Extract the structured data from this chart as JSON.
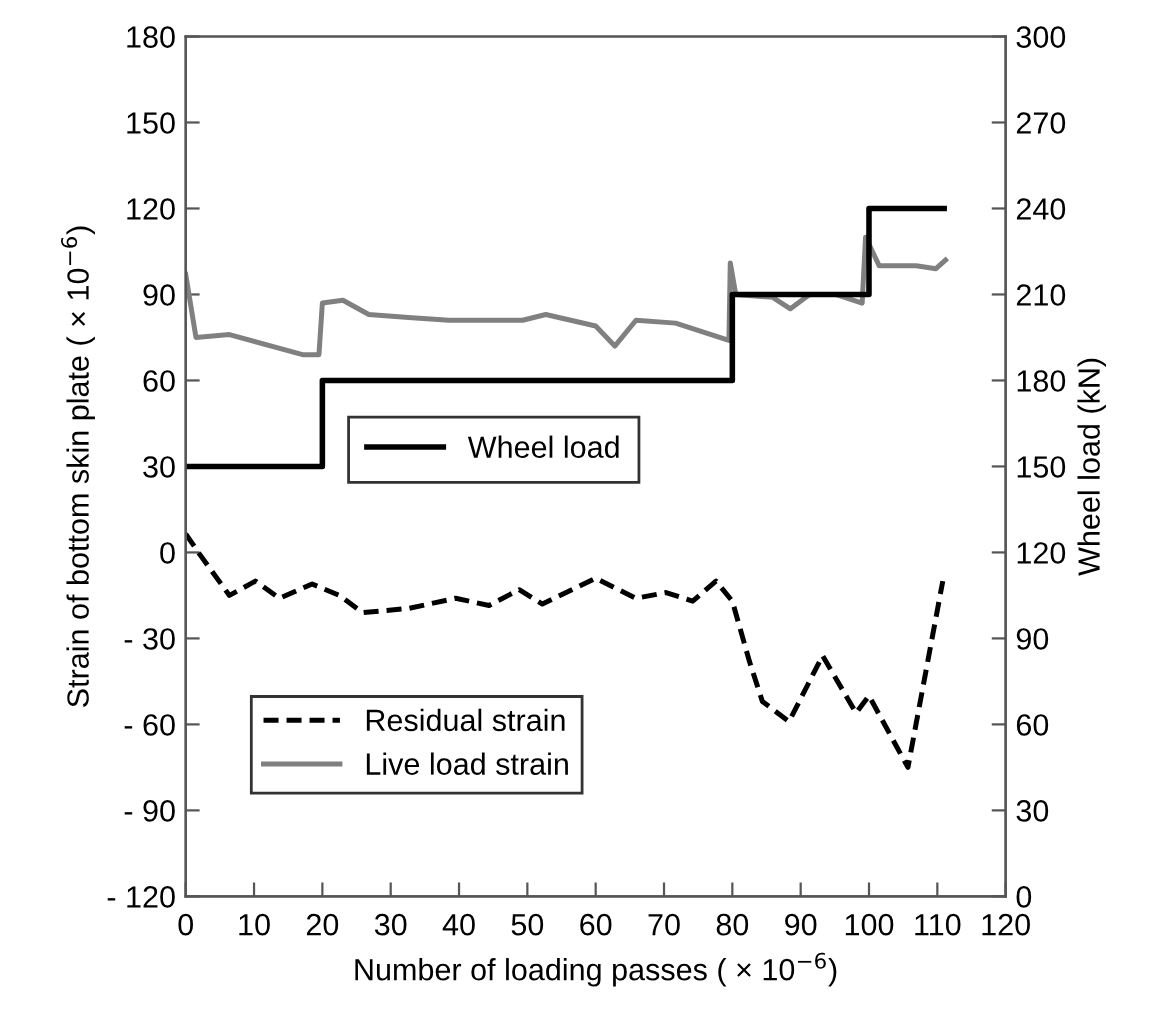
{
  "chart_data": {
    "type": "line",
    "xlabel": "Number of loading passes ( × 10$^{−6}$)",
    "ylabel": "Strain of bottom skin plate ( × 10$^{−6}$)",
    "y2label": "Wheel load (kN)",
    "xlim": [
      0,
      120
    ],
    "xticks": [
      0,
      10,
      20,
      30,
      40,
      50,
      60,
      70,
      80,
      90,
      100,
      110,
      120
    ],
    "ylim": [
      -120,
      180
    ],
    "yticks": [
      {
        "value": -120,
        "label": "- 120"
      },
      {
        "value": -90,
        "label": "- 90"
      },
      {
        "value": -60,
        "label": "- 60"
      },
      {
        "value": -30,
        "label": "- 30"
      },
      0,
      30,
      60,
      90,
      120,
      150,
      180
    ],
    "y2lim": [
      0,
      300
    ],
    "y2ticks": [
      0,
      30,
      60,
      90,
      120,
      150,
      180,
      210,
      240,
      270,
      300
    ],
    "grid": false,
    "legend": "bottom left",
    "series": [
      {
        "name": "Residual strain",
        "color": "#000000",
        "line_style": "dashed",
        "x": [
          0,
          2,
          6.4,
          10.2,
          13.7,
          18.5,
          22.5,
          25.9,
          32.7,
          39.5,
          44.4,
          48.8,
          52.2,
          60,
          65.9,
          70.3,
          74.2,
          77.6,
          80,
          82.5,
          84.4,
          88.3,
          93.2,
          98.1,
          100,
          105.7,
          110.8
        ],
        "values": [
          6.5,
          -0.5,
          -15,
          -10,
          -16,
          -11,
          -15,
          -21,
          -19.5,
          -16,
          -18.5,
          -13,
          -18,
          -9,
          -16,
          -14,
          -17,
          -10,
          -17,
          -38,
          -52,
          -59,
          -36,
          -56,
          -50,
          -75,
          -10
        ]
      },
      {
        "name": "Live load strain",
        "color": "#808080",
        "line_style": "solid",
        "x": [
          0,
          1.5,
          6.4,
          17.1,
          19.5,
          20,
          23,
          26.8,
          32.6,
          38.5,
          49.3,
          52.7,
          60,
          62.8,
          65.9,
          71.7,
          79.5,
          79.7,
          80.5,
          85.9,
          88.5,
          91.3,
          95.1,
          99,
          99.5,
          101.5,
          106.9,
          109.8,
          111.2
        ],
        "values": [
          97,
          75,
          76,
          69,
          69,
          87,
          88,
          83,
          82,
          81,
          81,
          83,
          79,
          72,
          81,
          80,
          74,
          101,
          90,
          89,
          85,
          90,
          90,
          87,
          110,
          100,
          100,
          99,
          102
        ]
      },
      {
        "name": "Wheel load",
        "type": "step",
        "axis": "y2",
        "color": "#000000",
        "line_style": "solid",
        "x": [
          0,
          20,
          80,
          100,
          111
        ],
        "values": [
          150,
          180,
          210,
          240,
          240
        ]
      }
    ]
  }
}
